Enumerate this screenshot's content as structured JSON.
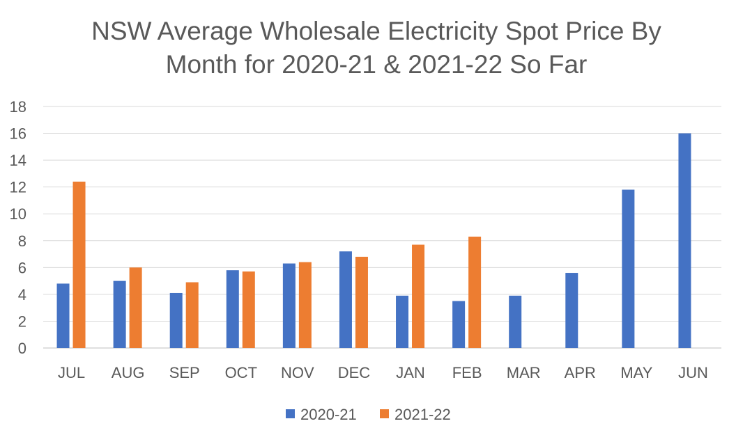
{
  "chart_data": {
    "type": "bar",
    "title_lines": [
      "NSW Average Wholesale Electricity Spot Price By",
      "Month for 2020-21 & 2021-22 So Far"
    ],
    "xlabel": "",
    "ylabel": "",
    "ylim": [
      0,
      18
    ],
    "yticks": [
      "0",
      "2",
      "4",
      "6",
      "8",
      "10",
      "12",
      "14",
      "16",
      "18"
    ],
    "grid": true,
    "legend_position": "bottom",
    "categories": [
      "JUL",
      "AUG",
      "SEP",
      "OCT",
      "NOV",
      "DEC",
      "JAN",
      "FEB",
      "MAR",
      "APR",
      "MAY",
      "JUN"
    ],
    "series": [
      {
        "name": "2020-21",
        "color": "#4472C4",
        "values": [
          4.8,
          5.0,
          4.1,
          5.8,
          6.3,
          7.2,
          3.9,
          3.5,
          3.9,
          5.6,
          11.8,
          16.0
        ]
      },
      {
        "name": "2021-22",
        "color": "#ED7D31",
        "values": [
          12.4,
          6.0,
          4.9,
          5.7,
          6.4,
          6.8,
          7.7,
          8.3,
          null,
          null,
          null,
          null
        ]
      }
    ]
  }
}
